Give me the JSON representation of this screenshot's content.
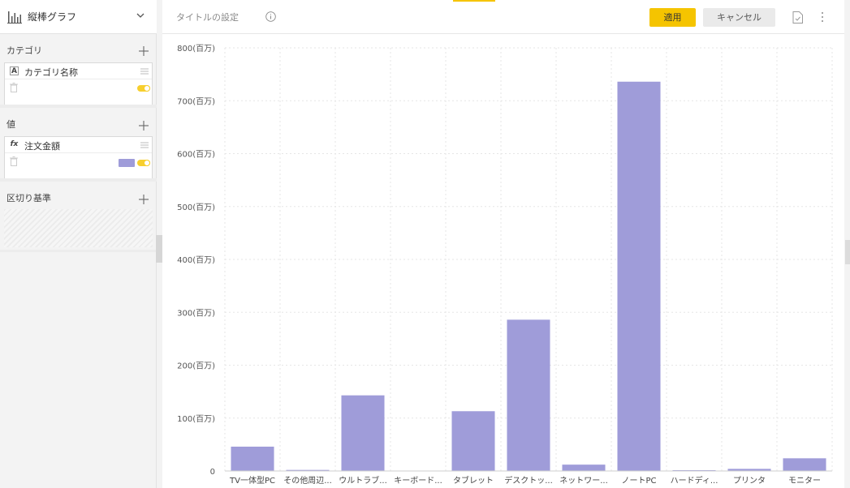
{
  "sidebar": {
    "chart_type": {
      "label": "縦棒グラフ",
      "icon": "bar-chart-icon"
    },
    "category": {
      "heading": "カテゴリ",
      "field": {
        "type_tag": "A",
        "name": "カテゴリ名称",
        "visible": true
      }
    },
    "value": {
      "heading": "値",
      "field": {
        "type_tag": "fx",
        "name": "注文金額",
        "color": "#9f9cd9",
        "visible": true
      }
    },
    "split": {
      "heading": "区切り基準"
    }
  },
  "topbar": {
    "title_setting": "タイトルの設定",
    "apply_label": "適用",
    "cancel_label": "キャンセル"
  },
  "colors": {
    "accent": "#f5c400",
    "bar": "#9f9cd9"
  },
  "chart_data": {
    "type": "bar",
    "categories": [
      "TV一体型PC",
      "その他周辺...",
      "ウルトラブ...",
      "キーボード...",
      "タブレット",
      "デスクトッ...",
      "ネットワー...",
      "ノートPC",
      "ハードディ...",
      "プリンタ",
      "モニター"
    ],
    "values": [
      46,
      2,
      143,
      0,
      113,
      286,
      12,
      736,
      1,
      4,
      24
    ],
    "y_unit": "百万",
    "yticks": [
      "0",
      "100(百万)",
      "200(百万)",
      "300(百万)",
      "400(百万)",
      "500(百万)",
      "600(百万)",
      "700(百万)",
      "800(百万)"
    ],
    "ylim": [
      0,
      800
    ],
    "grid": true,
    "title": "",
    "xlabel": "",
    "ylabel": ""
  }
}
